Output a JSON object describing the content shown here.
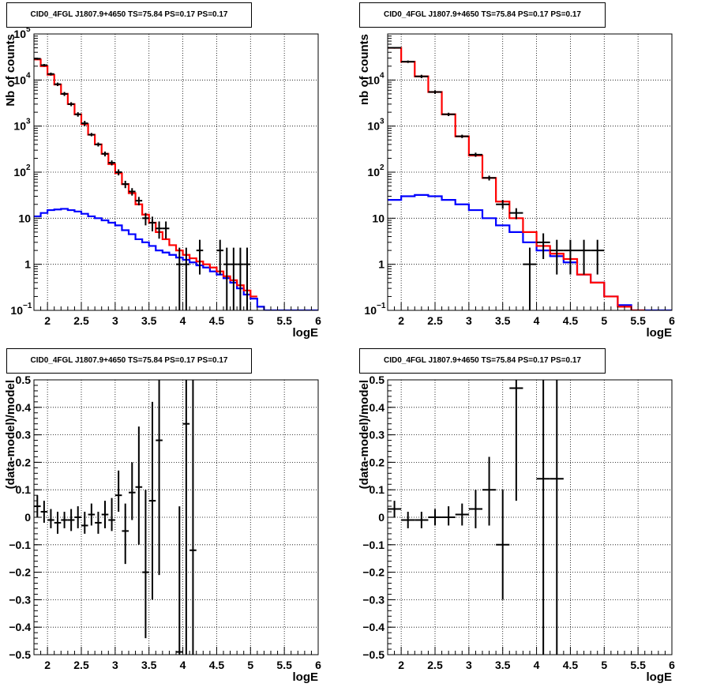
{
  "colors": {
    "data": "#000000",
    "total_model": "#ff0000",
    "background": "#0000ff",
    "frame": "#000000"
  },
  "chart_data": [
    {
      "id": "counts-left",
      "type": "line",
      "title": "CID0_4FGL J1807.9+4650 TS=75.84 PS=0.17 PS=0.17",
      "xlabel": "logE",
      "ylabel": "Nb of counts",
      "xlim": [
        1.8,
        6
      ],
      "ylim": [
        0.1,
        100000
      ],
      "ylog": true,
      "grid": true,
      "xticks": [
        "2",
        "2.5",
        "3",
        "3.5",
        "4",
        "4.5",
        "5",
        "5.5",
        "6"
      ],
      "yticks": [
        {
          "value": 0.1,
          "base": "10",
          "exp": "−1"
        },
        {
          "value": 1,
          "label": "1"
        },
        {
          "value": 10,
          "label": "10"
        },
        {
          "value": 100,
          "base": "10",
          "exp": "2"
        },
        {
          "value": 1000,
          "base": "10",
          "exp": "3"
        },
        {
          "value": 10000,
          "base": "10",
          "exp": "4"
        },
        {
          "value": 100000,
          "base": "10",
          "exp": "5"
        }
      ],
      "bin_edges": [
        1.8,
        1.9,
        2.0,
        2.1,
        2.2,
        2.3,
        2.4,
        2.5,
        2.6,
        2.7,
        2.8,
        2.9,
        3.0,
        3.1,
        3.2,
        3.3,
        3.4,
        3.5,
        3.6,
        3.7,
        3.8,
        3.9,
        4.0,
        4.1,
        4.2,
        4.3,
        4.4,
        4.5,
        4.6,
        4.7,
        4.8,
        4.9,
        5.0,
        5.1,
        5.2,
        5.3,
        5.4,
        5.5,
        5.6,
        5.7,
        5.8,
        5.9,
        6.0
      ],
      "series": [
        {
          "name": "background",
          "kind": "step",
          "color": "#0000ff",
          "values": [
            11,
            13,
            15,
            15.5,
            16,
            15,
            14,
            12.5,
            11,
            10,
            9,
            8,
            7,
            5.5,
            4.5,
            3.5,
            3,
            2.5,
            2,
            1.8,
            1.6,
            1.4,
            1.25,
            1.1,
            0.95,
            0.85,
            0.7,
            0.6,
            0.5,
            0.4,
            0.3,
            0.22,
            0.18,
            0.12,
            0.1,
            0.1,
            0.1,
            0.1,
            0.1,
            0.1,
            0.1,
            0.1
          ]
        },
        {
          "name": "total model",
          "kind": "step",
          "color": "#ff0000",
          "values": [
            28000,
            20000,
            13000,
            8000,
            5000,
            3000,
            1800,
            1100,
            650,
            400,
            250,
            150,
            95,
            55,
            35,
            20,
            12,
            8,
            5,
            3.5,
            2.6,
            2.0,
            1.6,
            1.35,
            1.15,
            1.0,
            0.85,
            0.7,
            0.55,
            0.45,
            0.35,
            0.27,
            0.2,
            null,
            null,
            null,
            null,
            null,
            null,
            null,
            null,
            null
          ]
        },
        {
          "name": "data",
          "kind": "points",
          "color": "#000000",
          "points": [
            {
              "x": 1.85,
              "y": 29000,
              "lo": 27500,
              "hi": 30500
            },
            {
              "x": 1.95,
              "y": 21000,
              "lo": 19700,
              "hi": 22300
            },
            {
              "x": 2.05,
              "y": 13500,
              "lo": 12500,
              "hi": 14500
            },
            {
              "x": 2.15,
              "y": 8100,
              "lo": 7400,
              "hi": 8800
            },
            {
              "x": 2.25,
              "y": 5000,
              "lo": 4500,
              "hi": 5500
            },
            {
              "x": 2.35,
              "y": 3000,
              "lo": 2700,
              "hi": 3300
            },
            {
              "x": 2.45,
              "y": 1800,
              "lo": 1600,
              "hi": 2000
            },
            {
              "x": 2.55,
              "y": 1150,
              "lo": 1000,
              "hi": 1300
            },
            {
              "x": 2.65,
              "y": 650,
              "lo": 600,
              "hi": 710
            },
            {
              "x": 2.75,
              "y": 400,
              "lo": 360,
              "hi": 440
            },
            {
              "x": 2.85,
              "y": 250,
              "lo": 220,
              "hi": 280
            },
            {
              "x": 2.95,
              "y": 160,
              "lo": 140,
              "hi": 180
            },
            {
              "x": 3.05,
              "y": 100,
              "lo": 85,
              "hi": 115
            },
            {
              "x": 3.15,
              "y": 55,
              "lo": 45,
              "hi": 65
            },
            {
              "x": 3.25,
              "y": 38,
              "lo": 31,
              "hi": 45
            },
            {
              "x": 3.35,
              "y": 24,
              "lo": 19,
              "hi": 29
            },
            {
              "x": 3.45,
              "y": 10,
              "lo": 7,
              "hi": 13
            },
            {
              "x": 3.55,
              "y": 8,
              "lo": 5.2,
              "hi": 10.8
            },
            {
              "x": 3.65,
              "y": 6,
              "lo": 3.6,
              "hi": 8.5
            },
            {
              "x": 3.75,
              "y": 6,
              "lo": 3.6,
              "hi": 8.5
            },
            {
              "x": 3.95,
              "y": 1,
              "lo": 0.1,
              "hi": 2.3
            },
            {
              "x": 4.05,
              "y": 1,
              "lo": 0.1,
              "hi": 2.3
            },
            {
              "x": 4.25,
              "y": 2,
              "lo": 0.6,
              "hi": 3.4
            },
            {
              "x": 4.55,
              "y": 2,
              "lo": 0.6,
              "hi": 3.4
            },
            {
              "x": 4.65,
              "y": 1,
              "lo": 0.1,
              "hi": 2.3
            },
            {
              "x": 4.75,
              "y": 1,
              "lo": 0.1,
              "hi": 2.3
            },
            {
              "x": 4.85,
              "y": 1,
              "lo": 0.1,
              "hi": 2.3
            },
            {
              "x": 4.95,
              "y": 1,
              "lo": 0.1,
              "hi": 2.3
            }
          ]
        }
      ]
    },
    {
      "id": "counts-right",
      "type": "line",
      "title": "CID0_4FGL J1807.9+4650 TS=75.84 PS=0.17 PS=0.17",
      "xlabel": "logE",
      "ylabel": "nb of counts",
      "xlim": [
        1.8,
        6
      ],
      "ylim": [
        0.1,
        100000
      ],
      "ylog": true,
      "grid": true,
      "xticks": [
        "2",
        "2.5",
        "3",
        "3.5",
        "4",
        "4.5",
        "5",
        "5.5",
        "6"
      ],
      "yticks": [
        {
          "value": 0.1,
          "base": "10",
          "exp": "−1"
        },
        {
          "value": 1,
          "label": "1"
        },
        {
          "value": 10,
          "label": "10"
        },
        {
          "value": 100,
          "base": "10",
          "exp": "2"
        },
        {
          "value": 1000,
          "base": "10",
          "exp": "3"
        },
        {
          "value": 10000,
          "base": "10",
          "exp": "4"
        }
      ],
      "bin_edges": [
        1.8,
        2.0,
        2.2,
        2.4,
        2.6,
        2.8,
        3.0,
        3.2,
        3.4,
        3.6,
        3.8,
        4.0,
        4.2,
        4.4,
        4.6,
        4.8,
        5.0,
        5.2,
        5.4,
        5.6,
        5.8,
        6.0
      ],
      "series": [
        {
          "name": "background",
          "kind": "step",
          "color": "#0000ff",
          "values": [
            25,
            30,
            32,
            30,
            25,
            20,
            15,
            10,
            7,
            5,
            3,
            2,
            1.5,
            1.1,
            0.6,
            0.4,
            0.2,
            0.13,
            0.1,
            0.1,
            0.1
          ]
        },
        {
          "name": "total model",
          "kind": "step",
          "color": "#ff0000",
          "values": [
            50000,
            25000,
            12000,
            5500,
            1800,
            600,
            230,
            75,
            23,
            10,
            5,
            2.5,
            1.7,
            1.3,
            0.6,
            0.4,
            0.2,
            0.12,
            0.1,
            null,
            null
          ]
        },
        {
          "name": "data",
          "kind": "points",
          "color": "#000000",
          "points": [
            {
              "x": 1.9,
              "y": 50000,
              "lo": 48000,
              "hi": 52000
            },
            {
              "x": 2.1,
              "y": 25000,
              "lo": 23500,
              "hi": 26500
            },
            {
              "x": 2.3,
              "y": 12000,
              "lo": 11000,
              "hi": 13000
            },
            {
              "x": 2.5,
              "y": 5500,
              "lo": 5000,
              "hi": 6000
            },
            {
              "x": 2.7,
              "y": 1800,
              "lo": 1650,
              "hi": 1950
            },
            {
              "x": 2.9,
              "y": 600,
              "lo": 550,
              "hi": 650
            },
            {
              "x": 3.1,
              "y": 240,
              "lo": 215,
              "hi": 265
            },
            {
              "x": 3.3,
              "y": 75,
              "lo": 66,
              "hi": 84
            },
            {
              "x": 3.5,
              "y": 20,
              "lo": 16,
              "hi": 25
            },
            {
              "x": 3.7,
              "y": 13,
              "lo": 9.5,
              "hi": 16.5
            },
            {
              "x": 3.9,
              "y": 1,
              "lo": 0.1,
              "hi": 2.3
            },
            {
              "x": 4.1,
              "y": 3,
              "lo": 1.3,
              "hi": 4.7
            },
            {
              "x": 4.3,
              "y": 2,
              "lo": 0.6,
              "hi": 3.4
            },
            {
              "x": 4.5,
              "y": 2,
              "lo": 0.6,
              "hi": 3.4
            },
            {
              "x": 4.7,
              "y": 2,
              "lo": 0.6,
              "hi": 3.4
            },
            {
              "x": 4.9,
              "y": 2,
              "lo": 0.6,
              "hi": 3.4
            }
          ]
        }
      ]
    },
    {
      "id": "residual-left",
      "type": "scatter",
      "title": "CID0_4FGL J1807.9+4650 TS=75.84 PS=0.17 PS=0.17",
      "xlabel": "logE",
      "ylabel": "(data-model)/model",
      "xlim": [
        1.8,
        6
      ],
      "ylim": [
        -0.5,
        0.5
      ],
      "ylog": false,
      "grid": true,
      "xticks": [
        "2",
        "2.5",
        "3",
        "3.5",
        "4",
        "4.5",
        "5",
        "5.5",
        "6"
      ],
      "yticks": [
        "−0.5",
        "−0.4",
        "−0.3",
        "−0.2",
        "−0.1",
        "0",
        "0.1",
        "0.2",
        "0.3",
        "0.4",
        "0.5"
      ],
      "series": [
        {
          "name": "data",
          "kind": "points",
          "color": "#000000",
          "xerr": 0.05,
          "points": [
            {
              "x": 1.85,
              "y": 0.04,
              "lo": 0.0,
              "hi": 0.08
            },
            {
              "x": 1.95,
              "y": 0.02,
              "lo": -0.02,
              "hi": 0.06
            },
            {
              "x": 2.05,
              "y": -0.01,
              "lo": -0.04,
              "hi": 0.03
            },
            {
              "x": 2.15,
              "y": -0.02,
              "lo": -0.06,
              "hi": 0.02
            },
            {
              "x": 2.25,
              "y": -0.01,
              "lo": -0.04,
              "hi": 0.02
            },
            {
              "x": 2.35,
              "y": -0.01,
              "lo": -0.05,
              "hi": 0.03
            },
            {
              "x": 2.45,
              "y": 0.0,
              "lo": -0.04,
              "hi": 0.04
            },
            {
              "x": 2.55,
              "y": -0.03,
              "lo": -0.06,
              "hi": 0.02
            },
            {
              "x": 2.65,
              "y": 0.01,
              "lo": -0.03,
              "hi": 0.05
            },
            {
              "x": 2.75,
              "y": -0.02,
              "lo": -0.06,
              "hi": 0.02
            },
            {
              "x": 2.85,
              "y": 0.01,
              "lo": -0.04,
              "hi": 0.06
            },
            {
              "x": 2.95,
              "y": -0.01,
              "lo": -0.05,
              "hi": 0.07
            },
            {
              "x": 3.05,
              "y": 0.08,
              "lo": 0.02,
              "hi": 0.17
            },
            {
              "x": 3.15,
              "y": -0.05,
              "lo": -0.17,
              "hi": 0.05
            },
            {
              "x": 3.25,
              "y": 0.09,
              "lo": -0.01,
              "hi": 0.2
            },
            {
              "x": 3.35,
              "y": 0.11,
              "lo": -0.1,
              "hi": 0.33
            },
            {
              "x": 3.45,
              "y": -0.2,
              "lo": -0.44,
              "hi": 0.1
            },
            {
              "x": 3.55,
              "y": 0.06,
              "lo": -0.3,
              "hi": 0.42
            },
            {
              "x": 3.65,
              "y": 0.28,
              "lo": -0.21,
              "hi": 0.6
            },
            {
              "x": 3.95,
              "y": -0.49,
              "lo": -0.5,
              "hi": 0.04
            },
            {
              "x": 4.05,
              "y": 0.34,
              "lo": -0.6,
              "hi": 0.6
            },
            {
              "x": 4.15,
              "y": -0.12,
              "lo": -0.6,
              "hi": 0.6
            }
          ]
        }
      ]
    },
    {
      "id": "residual-right",
      "type": "scatter",
      "title": "CID0_4FGL J1807.9+4650 TS=75.84 PS=0.17 PS=0.17",
      "xlabel": "logE",
      "ylabel": "(data-model)/model",
      "xlim": [
        1.8,
        6
      ],
      "ylim": [
        -0.5,
        0.5
      ],
      "ylog": false,
      "grid": true,
      "xticks": [
        "2",
        "2.5",
        "3",
        "3.5",
        "4",
        "4.5",
        "5",
        "5.5",
        "6"
      ],
      "yticks": [
        "−0.5",
        "−0.4",
        "−0.3",
        "−0.2",
        "−0.1",
        "0",
        "0.1",
        "0.2",
        "0.3",
        "0.4",
        "0.5"
      ],
      "series": [
        {
          "name": "data",
          "kind": "points",
          "color": "#000000",
          "xerr": 0.1,
          "points": [
            {
              "x": 1.9,
              "y": 0.03,
              "lo": 0.0,
              "hi": 0.06
            },
            {
              "x": 2.1,
              "y": -0.01,
              "lo": -0.04,
              "hi": 0.02
            },
            {
              "x": 2.3,
              "y": -0.01,
              "lo": -0.04,
              "hi": 0.02
            },
            {
              "x": 2.5,
              "y": 0.0,
              "lo": -0.03,
              "hi": 0.03
            },
            {
              "x": 2.7,
              "y": 0.0,
              "lo": -0.03,
              "hi": 0.04
            },
            {
              "x": 2.9,
              "y": 0.01,
              "lo": -0.03,
              "hi": 0.05
            },
            {
              "x": 3.1,
              "y": 0.03,
              "lo": -0.04,
              "hi": 0.1
            },
            {
              "x": 3.3,
              "y": 0.1,
              "lo": -0.03,
              "hi": 0.22
            },
            {
              "x": 3.5,
              "y": -0.1,
              "lo": -0.3,
              "hi": 0.1
            },
            {
              "x": 3.7,
              "y": 0.47,
              "lo": 0.06,
              "hi": 0.6
            },
            {
              "x": 4.1,
              "y": 0.14,
              "lo": -0.6,
              "hi": 0.6
            },
            {
              "x": 4.3,
              "y": 0.14,
              "lo": -0.6,
              "hi": 0.6
            }
          ]
        }
      ]
    }
  ]
}
